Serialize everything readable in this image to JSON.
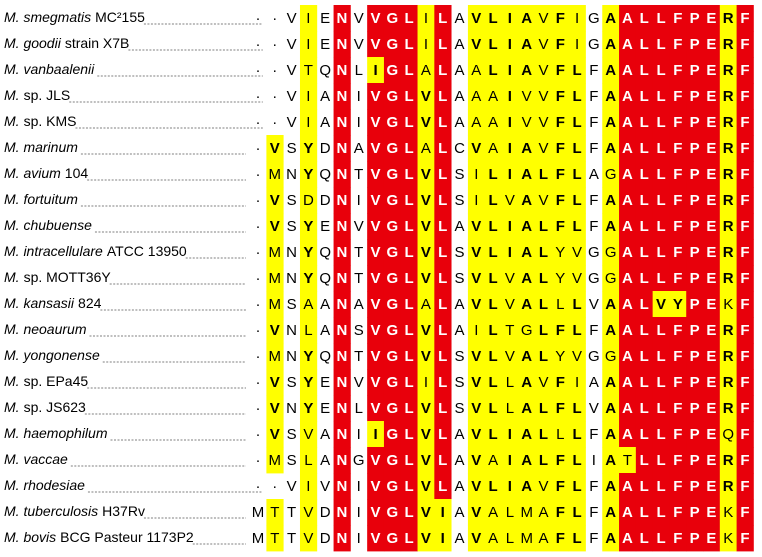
{
  "alignment": {
    "rows": [
      {
        "name": "M. smegmatis",
        "strain": "MC²155",
        "sequence": [
          "·",
          "·",
          "V",
          "I",
          "E",
          "N",
          "V",
          "V",
          "G",
          "L",
          "I",
          "L",
          "A",
          "V",
          "L",
          "I",
          "A",
          "V",
          "F",
          "I",
          "G",
          "A",
          "A",
          "L",
          "L",
          "F",
          "P",
          "E",
          "R",
          "F"
        ]
      },
      {
        "name": "M. goodii",
        "strain": "strain X7B",
        "sequence": [
          "·",
          "·",
          "V",
          "I",
          "E",
          "N",
          "V",
          "V",
          "G",
          "L",
          "I",
          "L",
          "A",
          "V",
          "L",
          "I",
          "A",
          "V",
          "F",
          "I",
          "G",
          "A",
          "A",
          "L",
          "L",
          "F",
          "P",
          "E",
          "R",
          "F"
        ]
      },
      {
        "name": "M. vanbaalenii",
        "sequence": [
          "·",
          "·",
          "V",
          "T",
          "Q",
          "N",
          "L",
          "I",
          "G",
          "L",
          "A",
          "L",
          "A",
          "A",
          "L",
          "I",
          "A",
          "V",
          "F",
          "L",
          "F",
          "A",
          "A",
          "L",
          "L",
          "F",
          "P",
          "E",
          "R",
          "F"
        ]
      },
      {
        "name": "M.",
        "strain": "sp. JLS",
        "sequence": [
          "·",
          "·",
          "V",
          "I",
          "A",
          "N",
          "I",
          "V",
          "G",
          "L",
          "V",
          "L",
          "A",
          "A",
          "A",
          "I",
          "V",
          "V",
          "F",
          "L",
          "F",
          "A",
          "A",
          "L",
          "L",
          "F",
          "P",
          "E",
          "R",
          "F"
        ]
      },
      {
        "name": "M.",
        "strain": "sp. KMS",
        "sequence": [
          "·",
          "·",
          "V",
          "I",
          "A",
          "N",
          "I",
          "V",
          "G",
          "L",
          "V",
          "L",
          "A",
          "A",
          "A",
          "I",
          "V",
          "V",
          "F",
          "L",
          "F",
          "A",
          "A",
          "L",
          "L",
          "F",
          "P",
          "E",
          "R",
          "F"
        ]
      },
      {
        "name": "M. marinum",
        "sequence": [
          "·",
          "V",
          "S",
          "Y",
          "D",
          "N",
          "A",
          "V",
          "G",
          "L",
          "A",
          "L",
          "C",
          "V",
          "A",
          "I",
          "A",
          "V",
          "F",
          "L",
          "F",
          "A",
          "A",
          "L",
          "L",
          "F",
          "P",
          "E",
          "R",
          "F"
        ]
      },
      {
        "name": "M. avium",
        "strain": "104",
        "sequence": [
          "·",
          "M",
          "N",
          "Y",
          "Q",
          "N",
          "T",
          "V",
          "G",
          "L",
          "V",
          "L",
          "S",
          "I",
          "L",
          "I",
          "A",
          "L",
          "F",
          "L",
          "A",
          "G",
          "A",
          "L",
          "L",
          "F",
          "P",
          "E",
          "R",
          "F"
        ]
      },
      {
        "name": "M. fortuitum",
        "sequence": [
          "·",
          "V",
          "S",
          "D",
          "D",
          "N",
          "I",
          "V",
          "G",
          "L",
          "V",
          "L",
          "S",
          "I",
          "L",
          "V",
          "A",
          "V",
          "F",
          "L",
          "F",
          "A",
          "A",
          "L",
          "L",
          "F",
          "P",
          "E",
          "R",
          "F"
        ]
      },
      {
        "name": "M. chubuense",
        "sequence": [
          "·",
          "V",
          "S",
          "Y",
          "E",
          "N",
          "V",
          "V",
          "G",
          "L",
          "V",
          "L",
          "A",
          "V",
          "L",
          "I",
          "A",
          "L",
          "F",
          "L",
          "F",
          "A",
          "A",
          "L",
          "L",
          "F",
          "P",
          "E",
          "R",
          "F"
        ]
      },
      {
        "name": "M. intracellulare",
        "strain": "ATCC 13950",
        "sequence": [
          "·",
          "M",
          "N",
          "Y",
          "Q",
          "N",
          "T",
          "V",
          "G",
          "L",
          "V",
          "L",
          "S",
          "V",
          "L",
          "I",
          "A",
          "L",
          "Y",
          "V",
          "G",
          "G",
          "A",
          "L",
          "L",
          "F",
          "P",
          "E",
          "R",
          "F"
        ]
      },
      {
        "name": "M.",
        "strain": "sp. MOTT36Y",
        "sequence": [
          "·",
          "M",
          "N",
          "Y",
          "Q",
          "N",
          "T",
          "V",
          "G",
          "L",
          "V",
          "L",
          "S",
          "V",
          "L",
          "V",
          "A",
          "L",
          "Y",
          "V",
          "G",
          "G",
          "A",
          "L",
          "L",
          "F",
          "P",
          "E",
          "R",
          "F"
        ]
      },
      {
        "name": "M. kansasii",
        "strain": "824",
        "sequence": [
          "·",
          "M",
          "S",
          "A",
          "A",
          "N",
          "A",
          "V",
          "G",
          "L",
          "A",
          "L",
          "A",
          "V",
          "L",
          "V",
          "A",
          "L",
          "L",
          "L",
          "V",
          "A",
          "A",
          "L",
          "V",
          "Y",
          "P",
          "E",
          "K",
          "F"
        ]
      },
      {
        "name": "M. neoaurum",
        "sequence": [
          "·",
          "V",
          "N",
          "L",
          "A",
          "N",
          "S",
          "V",
          "G",
          "L",
          "V",
          "L",
          "A",
          "I",
          "L",
          "T",
          "G",
          "L",
          "F",
          "L",
          "F",
          "A",
          "A",
          "L",
          "L",
          "F",
          "P",
          "E",
          "R",
          "F"
        ]
      },
      {
        "name": "M. yongonense",
        "sequence": [
          "·",
          "M",
          "N",
          "Y",
          "Q",
          "N",
          "T",
          "V",
          "G",
          "L",
          "V",
          "L",
          "S",
          "V",
          "L",
          "V",
          "A",
          "L",
          "Y",
          "V",
          "G",
          "G",
          "A",
          "L",
          "L",
          "F",
          "P",
          "E",
          "R",
          "F"
        ]
      },
      {
        "name": "M.",
        "strain": "sp. EPa45",
        "sequence": [
          "·",
          "V",
          "S",
          "Y",
          "E",
          "N",
          "V",
          "V",
          "G",
          "L",
          "I",
          "L",
          "S",
          "V",
          "L",
          "L",
          "A",
          "V",
          "F",
          "I",
          "A",
          "A",
          "A",
          "L",
          "L",
          "F",
          "P",
          "E",
          "R",
          "F"
        ]
      },
      {
        "name": "M.",
        "strain": "sp. JS623",
        "sequence": [
          "·",
          "V",
          "N",
          "Y",
          "E",
          "N",
          "L",
          "V",
          "G",
          "L",
          "V",
          "L",
          "S",
          "V",
          "L",
          "L",
          "A",
          "L",
          "F",
          "L",
          "V",
          "A",
          "A",
          "L",
          "L",
          "F",
          "P",
          "E",
          "R",
          "F"
        ]
      },
      {
        "name": "M. haemophilum",
        "sequence": [
          "·",
          "V",
          "S",
          "V",
          "A",
          "N",
          "I",
          "I",
          "G",
          "L",
          "V",
          "L",
          "A",
          "V",
          "L",
          "I",
          "A",
          "L",
          "L",
          "L",
          "F",
          "A",
          "A",
          "L",
          "L",
          "F",
          "P",
          "E",
          "Q",
          "F"
        ]
      },
      {
        "name": "M. vaccae",
        "sequence": [
          "·",
          "M",
          "S",
          "L",
          "A",
          "N",
          "G",
          "V",
          "G",
          "L",
          "V",
          "L",
          "A",
          "V",
          "A",
          "I",
          "A",
          "L",
          "F",
          "L",
          "I",
          "A",
          "T",
          "L",
          "L",
          "F",
          "P",
          "E",
          "R",
          "F"
        ]
      },
      {
        "name": "M. rhodesiae",
        "sequence": [
          "·",
          "·",
          "V",
          "I",
          "V",
          "N",
          "I",
          "V",
          "G",
          "L",
          "V",
          "L",
          "A",
          "V",
          "L",
          "I",
          "A",
          "V",
          "F",
          "L",
          "F",
          "A",
          "A",
          "L",
          "L",
          "F",
          "P",
          "E",
          "R",
          "F"
        ]
      },
      {
        "name": "M. tuberculosis",
        "strain": "H37Rv",
        "sequence": [
          "M",
          "T",
          "T",
          "V",
          "D",
          "N",
          "I",
          "V",
          "G",
          "L",
          "V",
          "I",
          "A",
          "V",
          "A",
          "L",
          "M",
          "A",
          "F",
          "L",
          "F",
          "A",
          "A",
          "L",
          "L",
          "F",
          "P",
          "E",
          "K",
          "F"
        ]
      },
      {
        "name": "M. bovis",
        "strain": "BCG Pasteur 1173P2",
        "sequence": [
          "M",
          "T",
          "T",
          "V",
          "D",
          "N",
          "I",
          "V",
          "G",
          "L",
          "V",
          "I",
          "A",
          "V",
          "A",
          "L",
          "M",
          "A",
          "F",
          "L",
          "F",
          "A",
          "A",
          "L",
          "L",
          "F",
          "P",
          "E",
          "K",
          "F"
        ]
      }
    ]
  }
}
